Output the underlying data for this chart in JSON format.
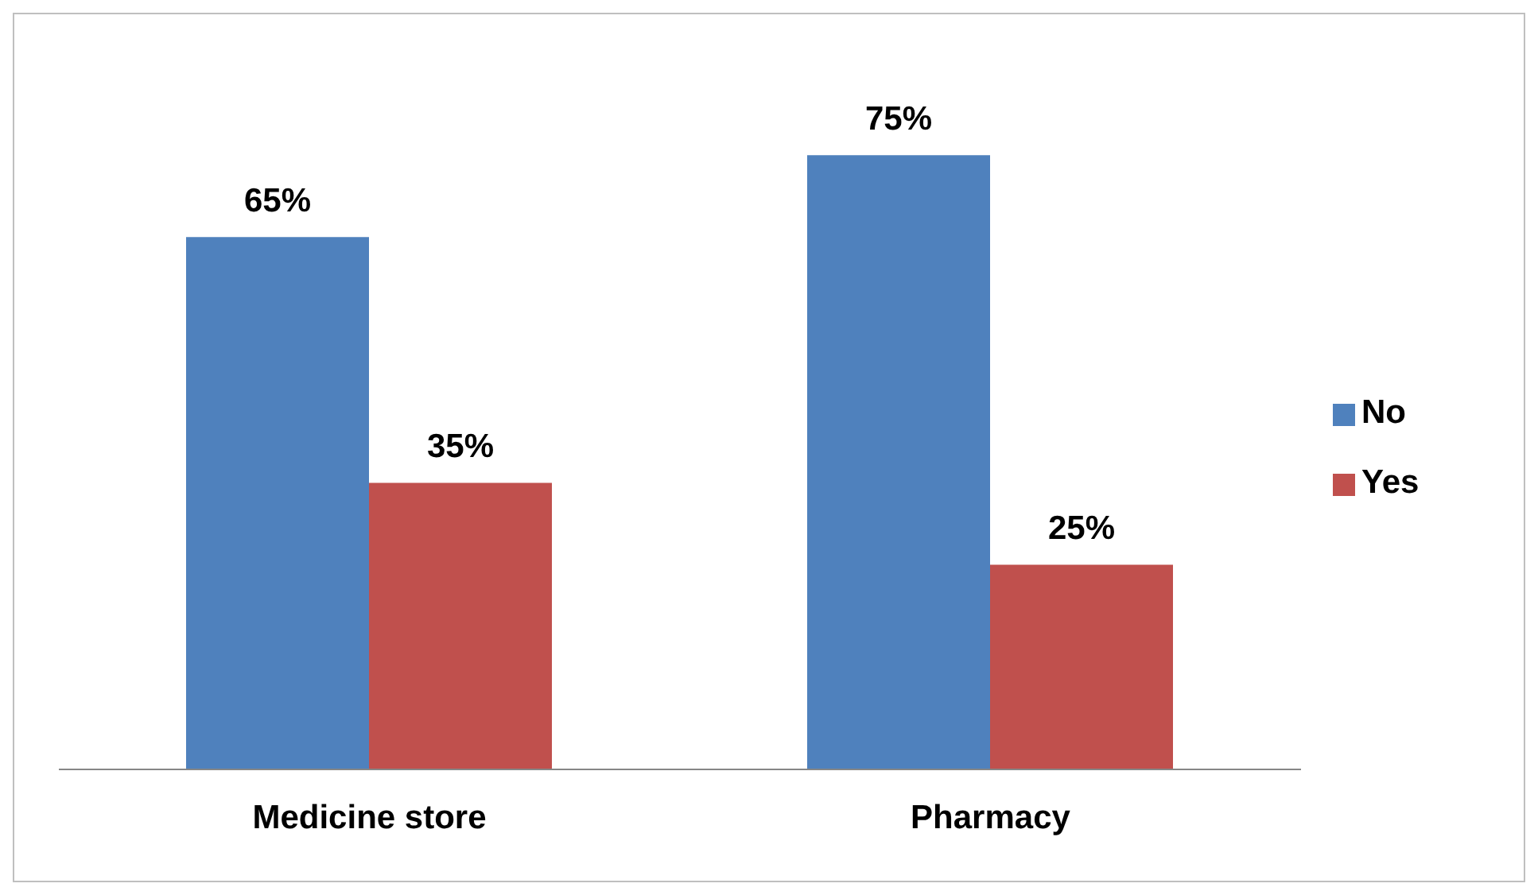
{
  "chart_data": {
    "type": "bar",
    "categories": [
      "Medicine store",
      "Pharmacy"
    ],
    "series": [
      {
        "name": "No",
        "color": "#4f81bd",
        "values": [
          65,
          75
        ],
        "value_labels": [
          "65%",
          "75%"
        ]
      },
      {
        "name": "Yes",
        "color": "#c0504d",
        "values": [
          35,
          25
        ],
        "value_labels": [
          "35%",
          "25%"
        ]
      }
    ],
    "legend": "right",
    "grid": false
  }
}
